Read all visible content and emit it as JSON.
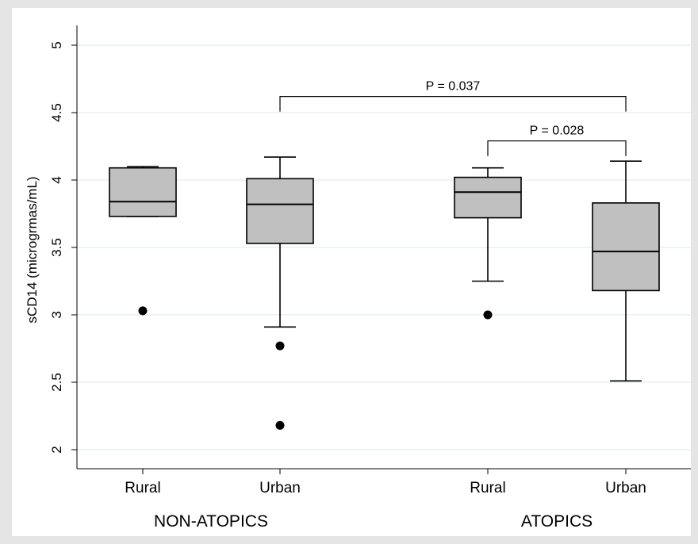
{
  "chart_data": {
    "type": "box",
    "ylabel": "sCD14 (microgrmas/mL)",
    "ylim": [
      1.95,
      5.15
    ],
    "yticks": [
      2,
      2.5,
      3,
      3.5,
      4,
      4.5,
      5
    ],
    "ytick_labels": [
      "2",
      "2.5",
      "3",
      "3.5",
      "4",
      "4.5",
      "5"
    ],
    "grid": true,
    "groups": [
      {
        "label": "NON-ATOPICS",
        "boxes": [
          {
            "label": "Rural",
            "whisker_low": 3.73,
            "q1": 3.73,
            "median": 3.84,
            "q3": 4.09,
            "whisker_high": 4.1,
            "outliers": [
              3.03
            ]
          },
          {
            "label": "Urban",
            "whisker_low": 2.91,
            "q1": 3.53,
            "median": 3.82,
            "q3": 4.01,
            "whisker_high": 4.17,
            "outliers": [
              2.77,
              2.18
            ]
          }
        ]
      },
      {
        "label": "ATOPICS",
        "boxes": [
          {
            "label": "Rural",
            "whisker_low": 3.25,
            "q1": 3.72,
            "median": 3.91,
            "q3": 4.02,
            "whisker_high": 4.09,
            "outliers": [
              3.0
            ]
          },
          {
            "label": "Urban",
            "whisker_low": 2.51,
            "q1": 3.18,
            "median": 3.47,
            "q3": 3.83,
            "whisker_high": 4.14,
            "outliers": []
          }
        ]
      }
    ],
    "annotations": [
      {
        "text": "P = 0.037",
        "from_box": 1,
        "to_box": 3,
        "y": 4.62
      },
      {
        "text": "P = 0.028",
        "from_box": 2,
        "to_box": 3,
        "y": 4.29
      }
    ],
    "colors": {
      "box_fill": "#c0c0c0",
      "outer_background": "#e5e5e5",
      "plot_background": "#ffffff",
      "grid": "#e8eff2",
      "marks": "#000000"
    }
  }
}
